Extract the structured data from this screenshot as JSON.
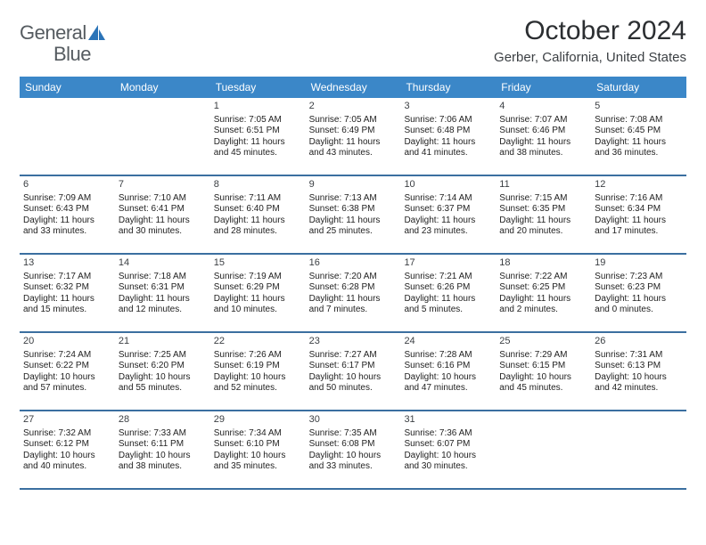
{
  "logo": {
    "general": "General",
    "blue": "Blue"
  },
  "title": "October 2024",
  "subtitle": "Gerber, California, United States",
  "colors": {
    "header_bg": "#3b87c8",
    "header_text": "#ffffff",
    "rule": "#3b6fa0",
    "logo_accent": "#2b74b8"
  },
  "dow": [
    "Sunday",
    "Monday",
    "Tuesday",
    "Wednesday",
    "Thursday",
    "Friday",
    "Saturday"
  ],
  "weeks": [
    [
      null,
      null,
      {
        "n": "1",
        "sr": "Sunrise: 7:05 AM",
        "ss": "Sunset: 6:51 PM",
        "d1": "Daylight: 11 hours",
        "d2": "and 45 minutes."
      },
      {
        "n": "2",
        "sr": "Sunrise: 7:05 AM",
        "ss": "Sunset: 6:49 PM",
        "d1": "Daylight: 11 hours",
        "d2": "and 43 minutes."
      },
      {
        "n": "3",
        "sr": "Sunrise: 7:06 AM",
        "ss": "Sunset: 6:48 PM",
        "d1": "Daylight: 11 hours",
        "d2": "and 41 minutes."
      },
      {
        "n": "4",
        "sr": "Sunrise: 7:07 AM",
        "ss": "Sunset: 6:46 PM",
        "d1": "Daylight: 11 hours",
        "d2": "and 38 minutes."
      },
      {
        "n": "5",
        "sr": "Sunrise: 7:08 AM",
        "ss": "Sunset: 6:45 PM",
        "d1": "Daylight: 11 hours",
        "d2": "and 36 minutes."
      }
    ],
    [
      {
        "n": "6",
        "sr": "Sunrise: 7:09 AM",
        "ss": "Sunset: 6:43 PM",
        "d1": "Daylight: 11 hours",
        "d2": "and 33 minutes."
      },
      {
        "n": "7",
        "sr": "Sunrise: 7:10 AM",
        "ss": "Sunset: 6:41 PM",
        "d1": "Daylight: 11 hours",
        "d2": "and 30 minutes."
      },
      {
        "n": "8",
        "sr": "Sunrise: 7:11 AM",
        "ss": "Sunset: 6:40 PM",
        "d1": "Daylight: 11 hours",
        "d2": "and 28 minutes."
      },
      {
        "n": "9",
        "sr": "Sunrise: 7:13 AM",
        "ss": "Sunset: 6:38 PM",
        "d1": "Daylight: 11 hours",
        "d2": "and 25 minutes."
      },
      {
        "n": "10",
        "sr": "Sunrise: 7:14 AM",
        "ss": "Sunset: 6:37 PM",
        "d1": "Daylight: 11 hours",
        "d2": "and 23 minutes."
      },
      {
        "n": "11",
        "sr": "Sunrise: 7:15 AM",
        "ss": "Sunset: 6:35 PM",
        "d1": "Daylight: 11 hours",
        "d2": "and 20 minutes."
      },
      {
        "n": "12",
        "sr": "Sunrise: 7:16 AM",
        "ss": "Sunset: 6:34 PM",
        "d1": "Daylight: 11 hours",
        "d2": "and 17 minutes."
      }
    ],
    [
      {
        "n": "13",
        "sr": "Sunrise: 7:17 AM",
        "ss": "Sunset: 6:32 PM",
        "d1": "Daylight: 11 hours",
        "d2": "and 15 minutes."
      },
      {
        "n": "14",
        "sr": "Sunrise: 7:18 AM",
        "ss": "Sunset: 6:31 PM",
        "d1": "Daylight: 11 hours",
        "d2": "and 12 minutes."
      },
      {
        "n": "15",
        "sr": "Sunrise: 7:19 AM",
        "ss": "Sunset: 6:29 PM",
        "d1": "Daylight: 11 hours",
        "d2": "and 10 minutes."
      },
      {
        "n": "16",
        "sr": "Sunrise: 7:20 AM",
        "ss": "Sunset: 6:28 PM",
        "d1": "Daylight: 11 hours",
        "d2": "and 7 minutes."
      },
      {
        "n": "17",
        "sr": "Sunrise: 7:21 AM",
        "ss": "Sunset: 6:26 PM",
        "d1": "Daylight: 11 hours",
        "d2": "and 5 minutes."
      },
      {
        "n": "18",
        "sr": "Sunrise: 7:22 AM",
        "ss": "Sunset: 6:25 PM",
        "d1": "Daylight: 11 hours",
        "d2": "and 2 minutes."
      },
      {
        "n": "19",
        "sr": "Sunrise: 7:23 AM",
        "ss": "Sunset: 6:23 PM",
        "d1": "Daylight: 11 hours",
        "d2": "and 0 minutes."
      }
    ],
    [
      {
        "n": "20",
        "sr": "Sunrise: 7:24 AM",
        "ss": "Sunset: 6:22 PM",
        "d1": "Daylight: 10 hours",
        "d2": "and 57 minutes."
      },
      {
        "n": "21",
        "sr": "Sunrise: 7:25 AM",
        "ss": "Sunset: 6:20 PM",
        "d1": "Daylight: 10 hours",
        "d2": "and 55 minutes."
      },
      {
        "n": "22",
        "sr": "Sunrise: 7:26 AM",
        "ss": "Sunset: 6:19 PM",
        "d1": "Daylight: 10 hours",
        "d2": "and 52 minutes."
      },
      {
        "n": "23",
        "sr": "Sunrise: 7:27 AM",
        "ss": "Sunset: 6:17 PM",
        "d1": "Daylight: 10 hours",
        "d2": "and 50 minutes."
      },
      {
        "n": "24",
        "sr": "Sunrise: 7:28 AM",
        "ss": "Sunset: 6:16 PM",
        "d1": "Daylight: 10 hours",
        "d2": "and 47 minutes."
      },
      {
        "n": "25",
        "sr": "Sunrise: 7:29 AM",
        "ss": "Sunset: 6:15 PM",
        "d1": "Daylight: 10 hours",
        "d2": "and 45 minutes."
      },
      {
        "n": "26",
        "sr": "Sunrise: 7:31 AM",
        "ss": "Sunset: 6:13 PM",
        "d1": "Daylight: 10 hours",
        "d2": "and 42 minutes."
      }
    ],
    [
      {
        "n": "27",
        "sr": "Sunrise: 7:32 AM",
        "ss": "Sunset: 6:12 PM",
        "d1": "Daylight: 10 hours",
        "d2": "and 40 minutes."
      },
      {
        "n": "28",
        "sr": "Sunrise: 7:33 AM",
        "ss": "Sunset: 6:11 PM",
        "d1": "Daylight: 10 hours",
        "d2": "and 38 minutes."
      },
      {
        "n": "29",
        "sr": "Sunrise: 7:34 AM",
        "ss": "Sunset: 6:10 PM",
        "d1": "Daylight: 10 hours",
        "d2": "and 35 minutes."
      },
      {
        "n": "30",
        "sr": "Sunrise: 7:35 AM",
        "ss": "Sunset: 6:08 PM",
        "d1": "Daylight: 10 hours",
        "d2": "and 33 minutes."
      },
      {
        "n": "31",
        "sr": "Sunrise: 7:36 AM",
        "ss": "Sunset: 6:07 PM",
        "d1": "Daylight: 10 hours",
        "d2": "and 30 minutes."
      },
      null,
      null
    ]
  ]
}
